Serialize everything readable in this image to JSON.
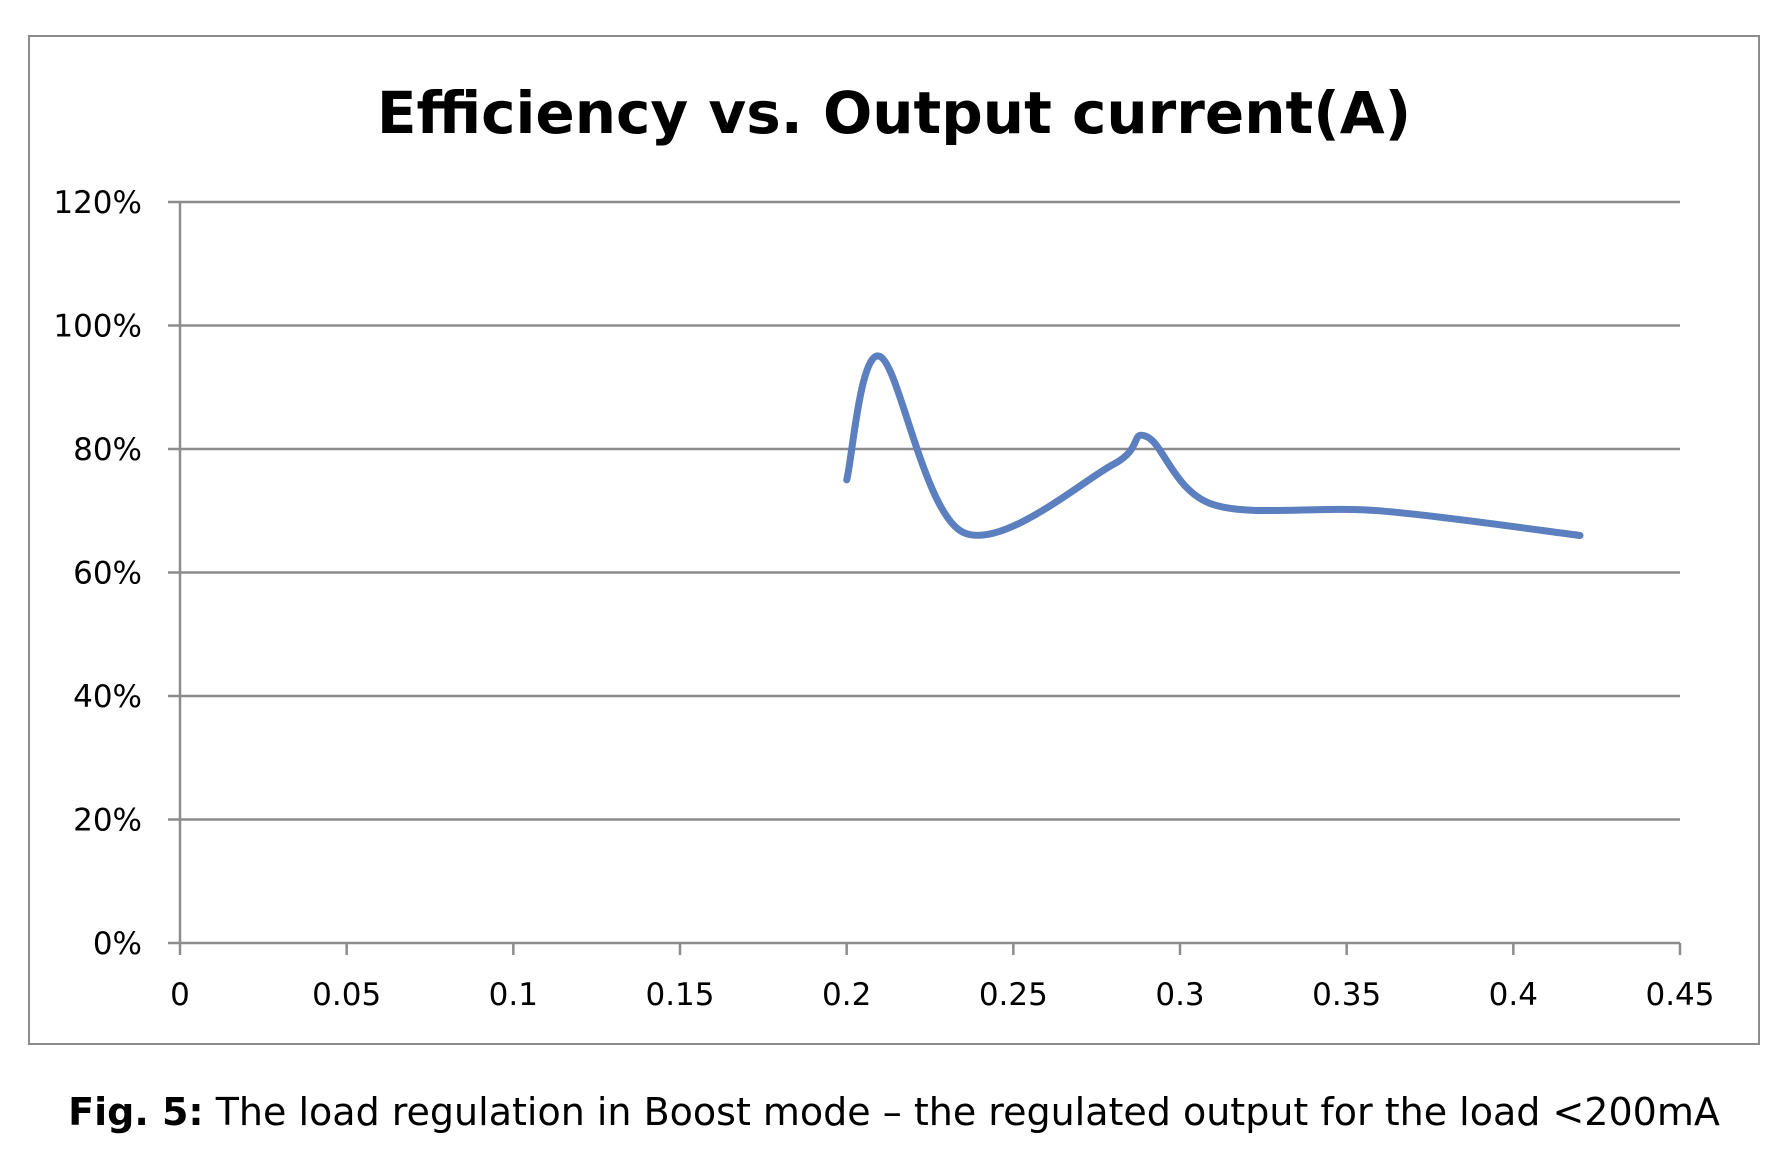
{
  "chart_data": {
    "type": "line",
    "title": "Efficiency vs. Output current(A)",
    "xlabel": "",
    "ylabel": "",
    "xlim": [
      0,
      0.45
    ],
    "ylim": [
      0,
      1.2
    ],
    "x_ticks": [
      "0",
      "0.05",
      "0.1",
      "0.15",
      "0.2",
      "0.25",
      "0.3",
      "0.35",
      "0.4",
      "0.45"
    ],
    "y_ticks": [
      "0%",
      "20%",
      "40%",
      "60%",
      "80%",
      "100%",
      "120%"
    ],
    "grid": true,
    "legend": "none",
    "series": [
      {
        "color": "#5b7fbf",
        "x": [
          0.2,
          0.21,
          0.235,
          0.28,
          0.29,
          0.31,
          0.36,
          0.42
        ],
        "y": [
          0.75,
          0.95,
          0.665,
          0.775,
          0.82,
          0.71,
          0.7,
          0.66
        ]
      }
    ]
  },
  "caption": {
    "label": "Fig. 5:",
    "text": " The load regulation in Boost mode – the regulated output for the load <200mA"
  }
}
